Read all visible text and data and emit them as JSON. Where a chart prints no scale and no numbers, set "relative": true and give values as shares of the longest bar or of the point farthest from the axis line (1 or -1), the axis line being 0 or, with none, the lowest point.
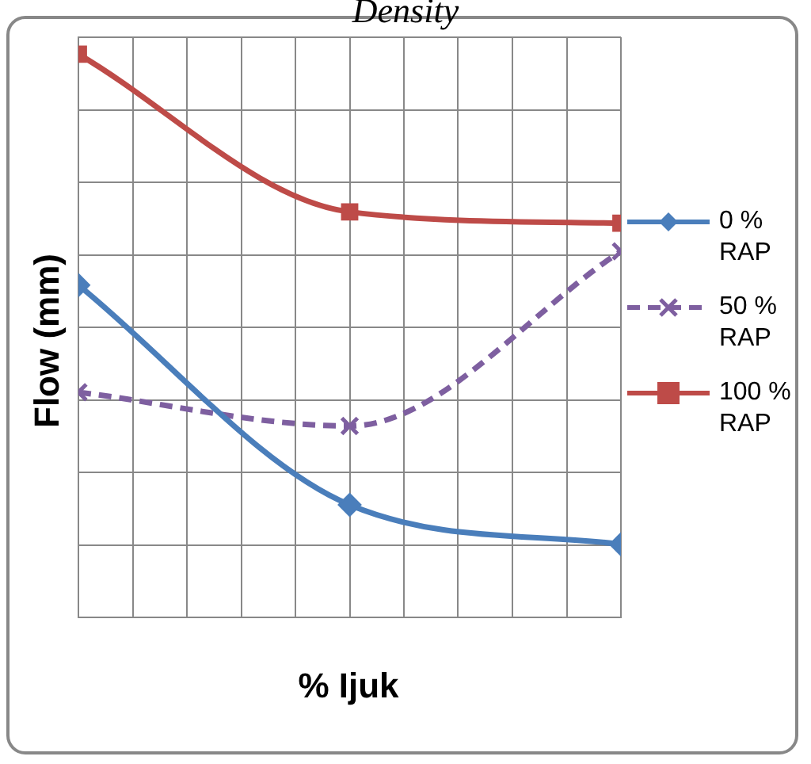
{
  "chart_data": {
    "type": "line",
    "title": "Density",
    "xlabel": "% Ijuk",
    "ylabel": "Flow (mm)",
    "categories": [
      null,
      null,
      null
    ],
    "relative": true,
    "grid": true,
    "legend": "right",
    "series": [
      {
        "name": "0 % RAP",
        "color": "#4a7ebb",
        "values": [
          0.59,
          0.2,
          0.13
        ],
        "marker": "diamond",
        "line_style": "solid"
      },
      {
        "name": "50 % RAP",
        "color": "#7e5fa0",
        "values": [
          0.4,
          0.34,
          0.65
        ],
        "marker": "cross",
        "line_style": "dashed"
      },
      {
        "name": "100 % RAP",
        "color": "#be4b48",
        "values": [
          1,
          0.72,
          0.7
        ],
        "marker": "square",
        "line_style": "solid"
      }
    ]
  }
}
